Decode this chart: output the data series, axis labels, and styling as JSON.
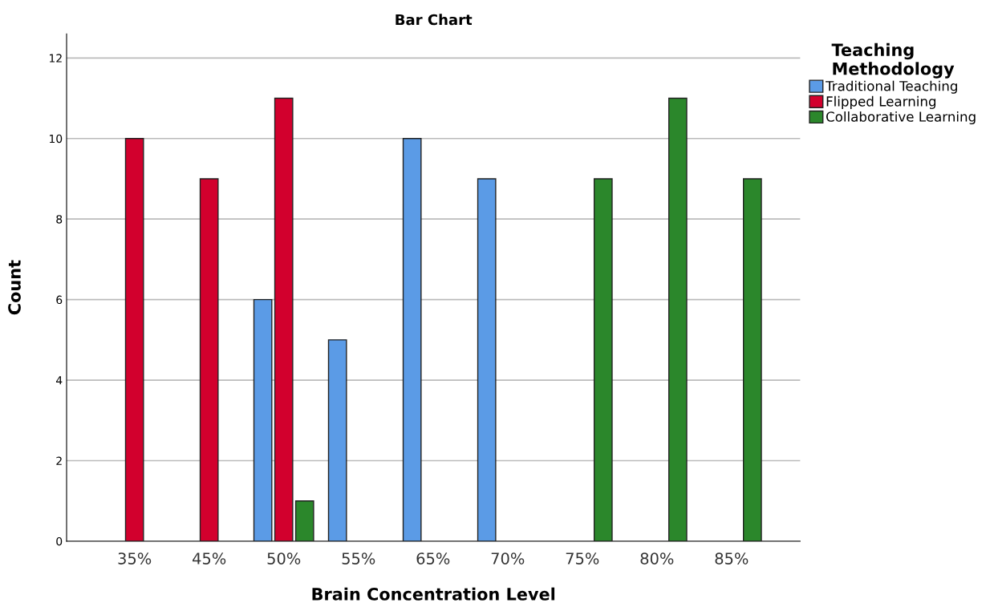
{
  "chart_data": {
    "type": "bar",
    "title": "Bar Chart",
    "xlabel": "Brain Concentration Level",
    "ylabel": "Count",
    "legend_title": "Teaching Methodology",
    "categories": [
      "35%",
      "45%",
      "50%",
      "55%",
      "65%",
      "70%",
      "75%",
      "80%",
      "85%"
    ],
    "series": [
      {
        "name": "Traditional Teaching",
        "color": "#5b9be6",
        "values": [
          null,
          null,
          6,
          5,
          10,
          9,
          null,
          null,
          null
        ]
      },
      {
        "name": "Flipped Learning",
        "color": "#d2002d",
        "values": [
          10,
          9,
          11,
          null,
          null,
          null,
          null,
          null,
          null
        ]
      },
      {
        "name": "Collaborative Learning",
        "color": "#2b872b",
        "values": [
          null,
          null,
          1,
          null,
          null,
          null,
          9,
          11,
          9
        ]
      }
    ],
    "ylim": [
      0,
      12.6
    ],
    "yticks": [
      0,
      2,
      4,
      6,
      8,
      10,
      12
    ],
    "grid": "y",
    "legend": "top right"
  }
}
